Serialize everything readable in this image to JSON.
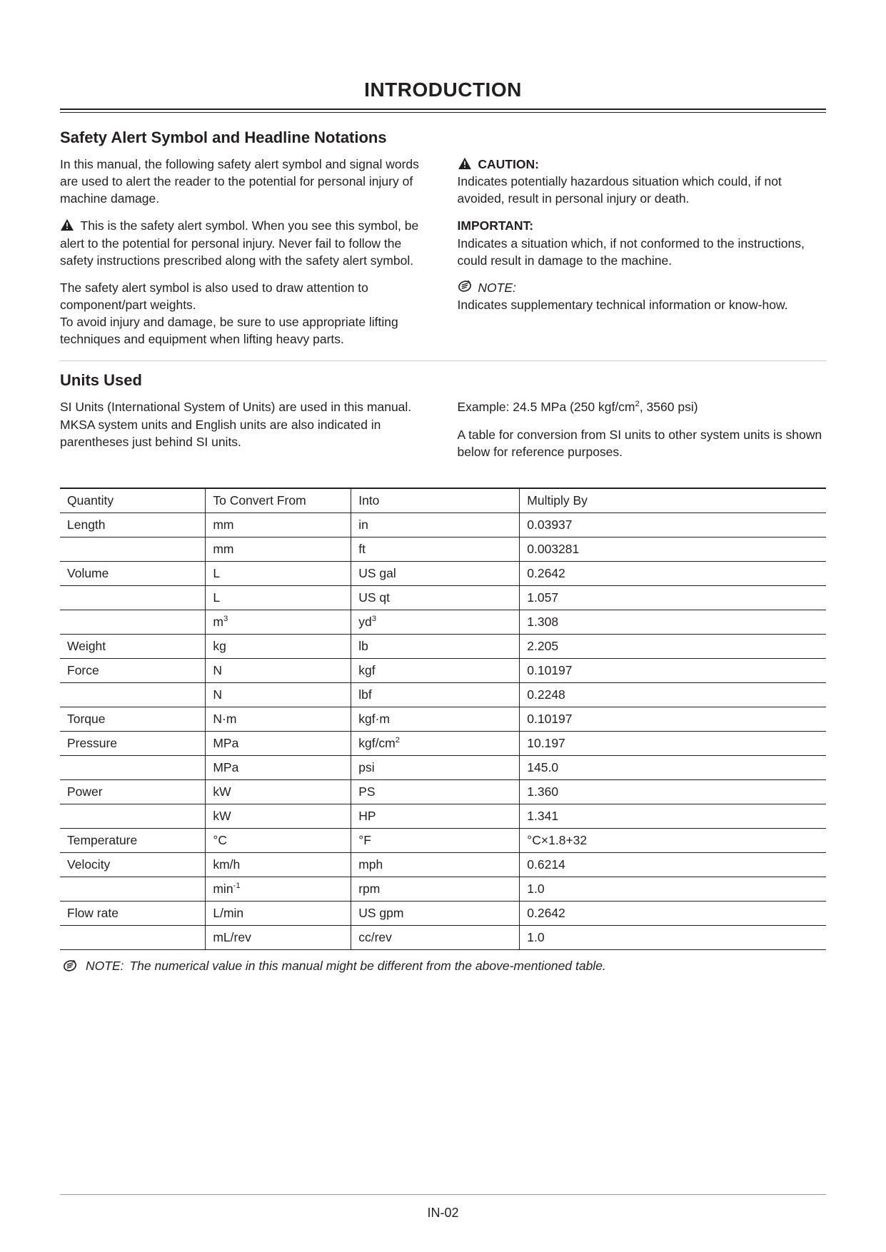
{
  "page_title": "INTRODUCTION",
  "page_number": "IN-02",
  "section1": {
    "heading": "Safety Alert Symbol and Headline Notations",
    "left": {
      "p1": "In this manual, the following safety alert symbol and signal words are used to alert the reader to the potential for personal injury of machine damage.",
      "p2": "This is the safety alert symbol. When you see this symbol, be alert to the potential for personal injury. Never fail to follow the safety instructions prescribed along with the safety alert symbol.",
      "p3": "The safety alert symbol is also used to draw attention to component/part weights.",
      "p4": "To avoid injury and damage, be sure to use appropriate lifting techniques and equipment when lifting heavy parts."
    },
    "right": {
      "caution_label": "CAUTION:",
      "caution_body": "Indicates potentially hazardous situation which could, if not avoided, result in personal injury or death.",
      "important_label": "IMPORTANT:",
      "important_body": "Indicates a situation which, if not conformed to the instructions, could result in damage to the machine.",
      "note_label": "NOTE:",
      "note_body": "Indicates supplementary technical information or know-how."
    }
  },
  "section2": {
    "heading": "Units Used",
    "left": "SI Units (International System of Units) are used in this manual. MKSA system units and English units are also indicated in parentheses just behind SI units.",
    "right_example_prefix": "Example: 24.5 MPa (250 kgf/cm",
    "right_example_suffix": ", 3560 psi)",
    "right_p2": "A table for conversion from SI units to other system units is shown below for reference purposes."
  },
  "table": {
    "headers": [
      "Quantity",
      "To Convert From",
      "Into",
      "Multiply By"
    ],
    "rows": [
      {
        "q": "Length",
        "from": "mm",
        "into": "in",
        "mult": "0.03937"
      },
      {
        "q": "",
        "from": "mm",
        "into": "ft",
        "mult": "0.003281"
      },
      {
        "q": "Volume",
        "from": "L",
        "into": "US gal",
        "mult": "0.2642"
      },
      {
        "q": "",
        "from": "L",
        "into": "US qt",
        "mult": "1.057"
      },
      {
        "q": "",
        "from_html": "m<sup>3</sup>",
        "into_html": "yd<sup>3</sup>",
        "mult": "1.308"
      },
      {
        "q": "Weight",
        "from": "kg",
        "into": "lb",
        "mult": "2.205"
      },
      {
        "q": "Force",
        "from": "N",
        "into": "kgf",
        "mult": "0.10197"
      },
      {
        "q": "",
        "from": "N",
        "into": "lbf",
        "mult": "0.2248"
      },
      {
        "q": "Torque",
        "from": "N·m",
        "into": "kgf·m",
        "mult": "0.10197"
      },
      {
        "q": "Pressure",
        "from": "MPa",
        "into_html": "kgf/cm<sup>2</sup>",
        "mult": "10.197"
      },
      {
        "q": "",
        "from": "MPa",
        "into": "psi",
        "mult": "145.0"
      },
      {
        "q": "Power",
        "from": "kW",
        "into": "PS",
        "mult": "1.360"
      },
      {
        "q": "",
        "from": "kW",
        "into": "HP",
        "mult": "1.341"
      },
      {
        "q": "Temperature",
        "from": "°C",
        "into": "°F",
        "mult": "°C×1.8+32"
      },
      {
        "q": "Velocity",
        "from": "km/h",
        "into": "mph",
        "mult": "0.6214"
      },
      {
        "q": "",
        "from_html": "min<sup>-1</sup>",
        "into": "rpm",
        "mult": "1.0"
      },
      {
        "q": "Flow rate",
        "from": "L/min",
        "into": "US gpm",
        "mult": "0.2642"
      },
      {
        "q": "",
        "from": "mL/rev",
        "into": "cc/rev",
        "mult": "1.0"
      }
    ]
  },
  "footnote": {
    "label": "NOTE:",
    "body": "The numerical value in this manual might be different from the above-mentioned table."
  },
  "icons": {
    "warning_svg": "<svg width='20' height='18' viewBox='0 0 24 22'><path d='M12 1 L23 21 L1 21 Z' fill='#231f20'/><rect x='11' y='7' width='2' height='7' fill='#fff'/><rect x='11' y='16' width='2' height='2.2' fill='#fff'/></svg>",
    "note_svg": "<svg width='20' height='20' viewBox='0 0 24 24'><ellipse cx='12' cy='12' rx='10' ry='8' transform='rotate(-20 12 12)' fill='none' stroke='#231f20' stroke-width='2'/><line x1='7' y1='10' x2='17' y2='7' stroke='#231f20' stroke-width='1.6'/><line x1='7' y1='13' x2='17' y2='10' stroke='#231f20' stroke-width='1.6'/><line x1='7' y1='16' x2='15' y2='13.5' stroke='#231f20' stroke-width='1.6'/><path d='M18 2 L21 5 L19 7 L16 4 Z' fill='#231f20'/></svg>"
  },
  "colors": {
    "text": "#231f20",
    "rule_light": "#c9c9c9",
    "background": "#ffffff"
  },
  "typography": {
    "title_pt": 28,
    "heading_pt": 22,
    "body_pt": 17.5
  }
}
